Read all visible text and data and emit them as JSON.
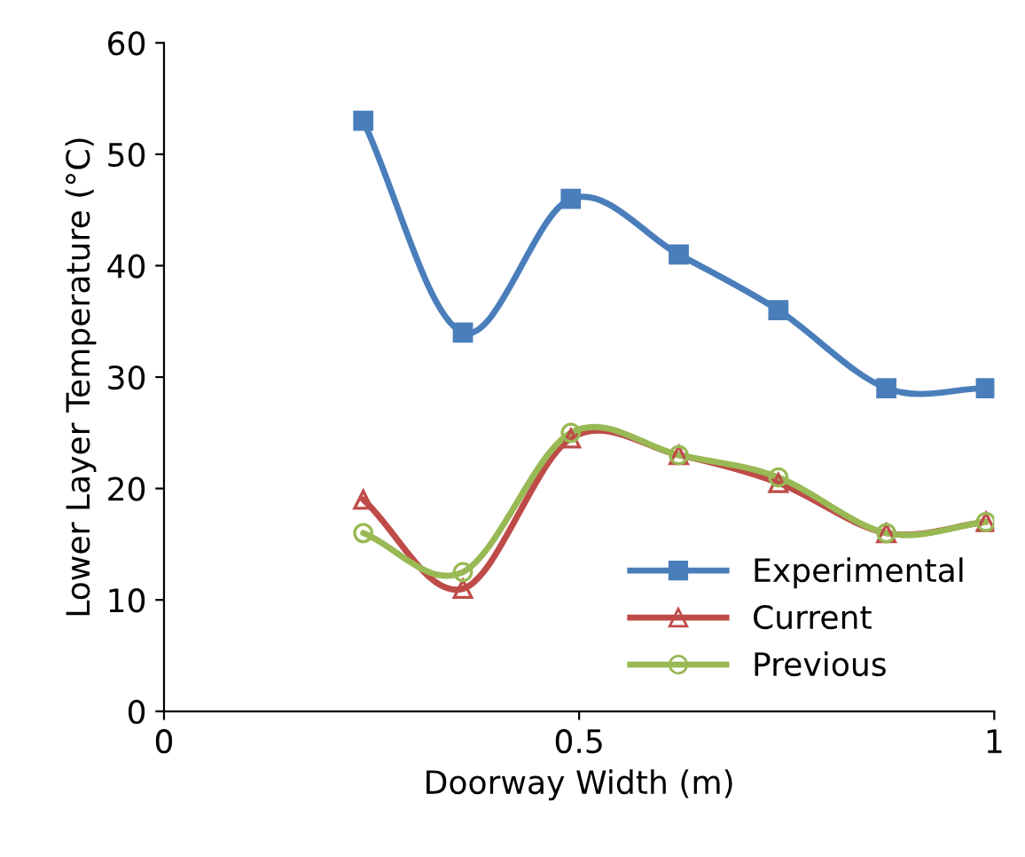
{
  "chart_data": {
    "type": "line",
    "xlabel": "Doorway Width (m)",
    "ylabel": "Lower Layer Temperature (°C)",
    "x": [
      0.24,
      0.36,
      0.49,
      0.62,
      0.74,
      0.87,
      0.99
    ],
    "series": [
      {
        "name": "Experimental",
        "color": "#4a7ebb",
        "marker": "square",
        "values": [
          53,
          34,
          46,
          41,
          36,
          29,
          29
        ]
      },
      {
        "name": "Current",
        "color": "#be4b48",
        "marker": "triangle",
        "values": [
          19,
          11,
          24.5,
          23,
          20.5,
          16,
          17
        ]
      },
      {
        "name": "Previous",
        "color": "#98b954",
        "marker": "circle",
        "values": [
          16,
          12.5,
          25,
          23,
          21,
          16,
          17
        ]
      }
    ],
    "xlim": [
      0,
      1
    ],
    "xticks": [
      0,
      0.5,
      1
    ],
    "ylim": [
      0,
      60
    ],
    "yticks": [
      0,
      10,
      20,
      30,
      40,
      50,
      60
    ],
    "grid": false,
    "legend": "bottom right",
    "line_style": "solid"
  }
}
